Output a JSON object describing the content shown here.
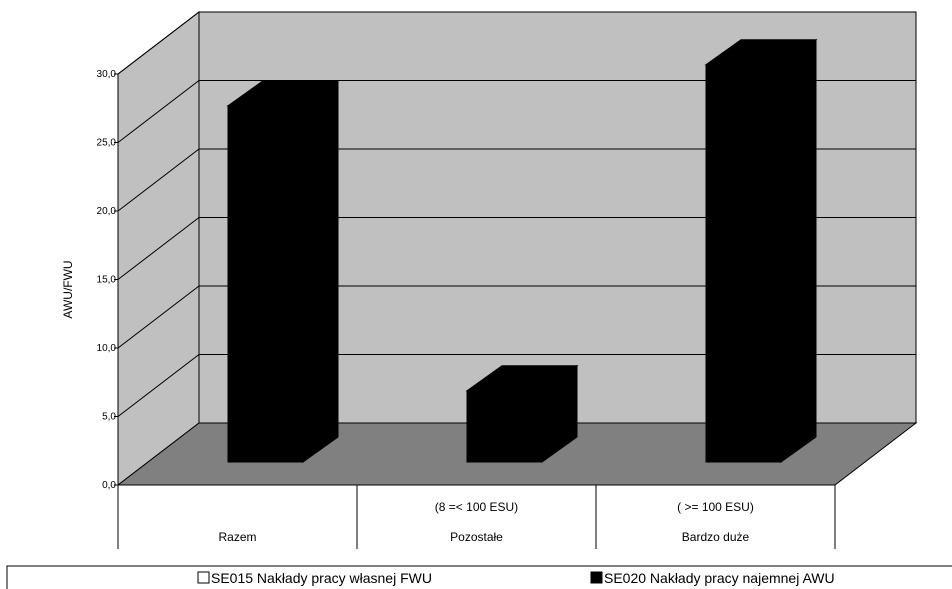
{
  "chart_data": {
    "type": "bar",
    "three_d": true,
    "ylabel": "AWU/FWU",
    "ylim": [
      0,
      30
    ],
    "yticks": [
      "0,0",
      "5,0",
      "10,0",
      "15,0",
      "20,0",
      "25,0",
      "30,0"
    ],
    "grid": true,
    "categories": [
      {
        "lines": [
          "",
          "Razem"
        ]
      },
      {
        "lines": [
          "(8 =< 100 ESU)",
          "Pozostałe"
        ]
      },
      {
        "lines": [
          "( >= 100 ESU)",
          "Bardzo duże"
        ]
      }
    ],
    "series": [
      {
        "name": "SE015 Nakłady pracy własnej FWU",
        "color": "#ffffff",
        "values": [
          0,
          0,
          0
        ]
      },
      {
        "name": "SE020 Nakłady pracy najemnej AWU",
        "color": "#000000",
        "values": [
          26.0,
          5.2,
          29.0
        ]
      }
    ],
    "legend_position": "bottom",
    "colors": {
      "wall": "#c0c0c0",
      "floor": "#808080",
      "bar": "#000000"
    }
  }
}
